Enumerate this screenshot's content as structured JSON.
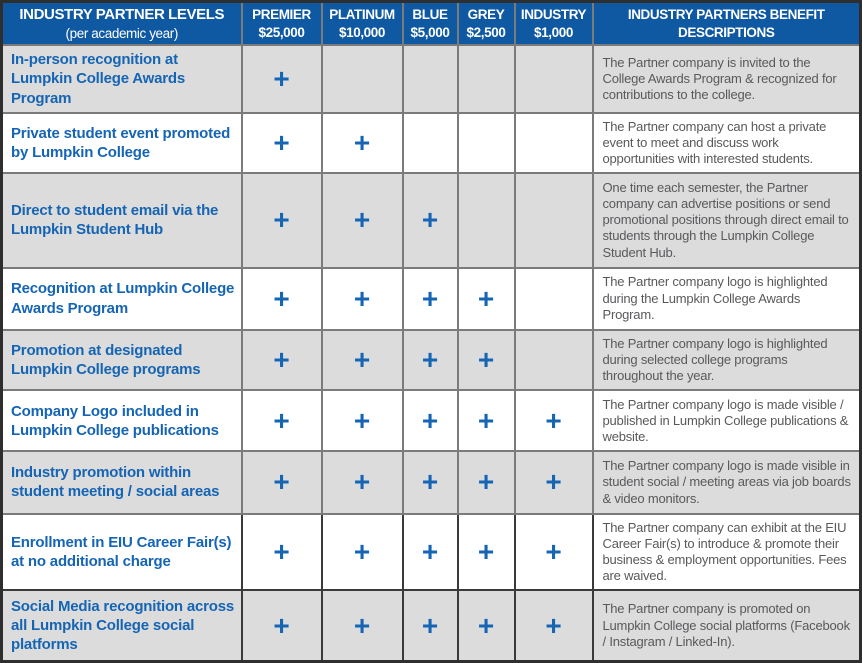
{
  "table": {
    "header": {
      "levels_title": "INDUSTRY PARTNER LEVELS",
      "levels_subtitle": "(per academic year)",
      "tiers": [
        {
          "name": "PREMIER",
          "amount": "$25,000"
        },
        {
          "name": "PLATINUM",
          "amount": "$10,000"
        },
        {
          "name": "BLUE",
          "amount": "$5,000"
        },
        {
          "name": "GREY",
          "amount": "$2,500"
        },
        {
          "name": "INDUSTRY",
          "amount": "$1,000"
        }
      ],
      "descriptions_title": "INDUSTRY PARTNERS BENEFIT DESCRIPTIONS"
    },
    "rows": [
      {
        "label": "In-person recognition at Lumpkin College Awards Program",
        "marks": [
          "+",
          "",
          "",
          "",
          ""
        ],
        "description": "The Partner company is invited to the College Awards Program & recognized for contributions to the college."
      },
      {
        "label": "Private student event promoted by Lumpkin College",
        "marks": [
          "+",
          "+",
          "",
          "",
          ""
        ],
        "description": "The Partner company can host a private event to meet and discuss work opportunities with interested students."
      },
      {
        "label": "Direct to student email via the Lumpkin Student Hub",
        "marks": [
          "+",
          "+",
          "+",
          "",
          ""
        ],
        "description": "One time each semester, the Partner company can advertise positions or send promotional positions through direct email to students through the Lumpkin College Student Hub."
      },
      {
        "label": "Recognition at Lumpkin College Awards Program",
        "marks": [
          "+",
          "+",
          "+",
          "+",
          ""
        ],
        "description": "The Partner company logo is highlighted during the Lumpkin College Awards Program."
      },
      {
        "label": "Promotion at designated Lumpkin College programs",
        "marks": [
          "+",
          "+",
          "+",
          "+",
          ""
        ],
        "description": "The Partner company logo is highlighted during selected college programs throughout the year."
      },
      {
        "label": "Company Logo included in Lumpkin College publications",
        "marks": [
          "+",
          "+",
          "+",
          "+",
          "+"
        ],
        "description": "The Partner company logo is made visible / published in Lumpkin College publications & website."
      },
      {
        "label": "Industry promotion within student meeting / social areas",
        "marks": [
          "+",
          "+",
          "+",
          "+",
          "+"
        ],
        "description": "The Partner company logo is made visible in student social / meeting areas via job boards & video monitors."
      },
      {
        "label": "Enrollment in EIU Career Fair(s) at no additional charge",
        "marks": [
          "+",
          "+",
          "+",
          "+",
          "+"
        ],
        "description": "The Partner company can exhibit at the EIU Career Fair(s) to introduce & promote their business & employment opportunities.  Fees are waived."
      },
      {
        "label": "Social Media recognition across all Lumpkin College social platforms",
        "marks": [
          "+",
          "+",
          "+",
          "+",
          "+"
        ],
        "description": "The Partner company is promoted on Lumpkin College social platforms (Facebook / Instagram / Linked-In)."
      }
    ],
    "colors": {
      "header_blue": "#0f58a2",
      "accent_blue": "#1565b4",
      "row_gray": "#dcdcdc",
      "row_white": "#ffffff",
      "border_gray": "#7b7b7b",
      "border_dark": "#3a3a3a",
      "description_text": "#58595b"
    }
  }
}
